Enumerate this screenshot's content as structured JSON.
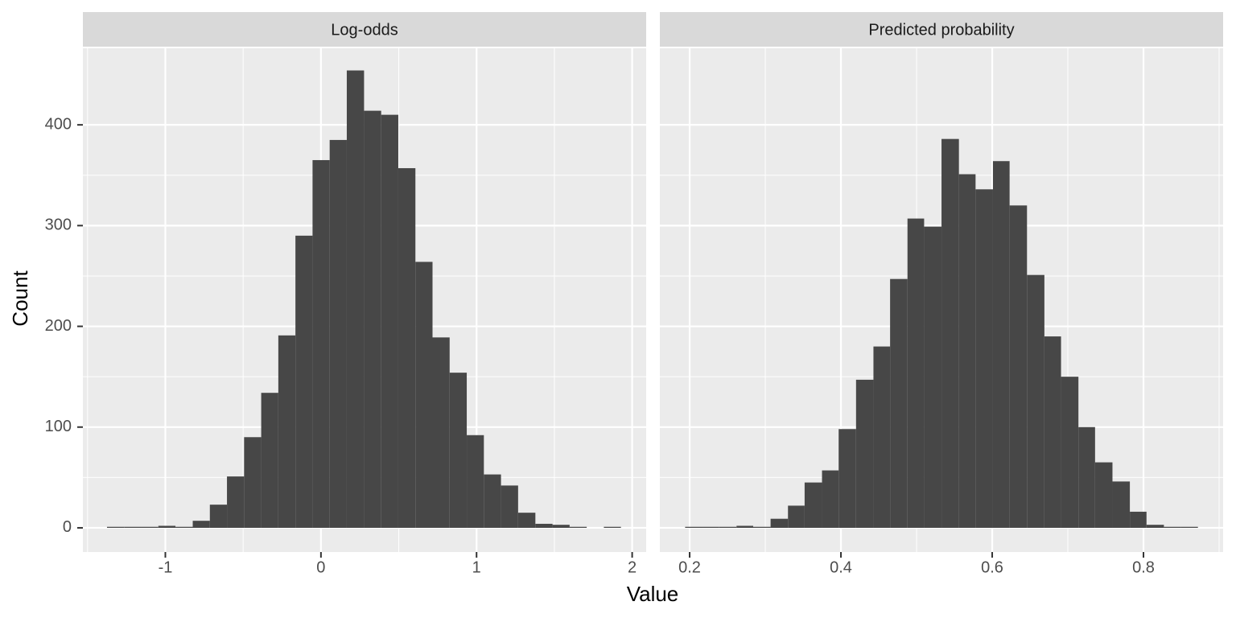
{
  "chart_data": {
    "type": "histogram",
    "xlabel": "Value",
    "ylabel": "Count",
    "color": "#474747",
    "ylim": [
      -24,
      476
    ],
    "yticks": [
      0,
      100,
      200,
      300,
      400
    ],
    "grid": true,
    "facets": [
      {
        "title": "Log-odds",
        "xlim": [
          -1.53,
          2.09
        ],
        "xticks": [
          -1,
          0,
          1,
          2
        ],
        "bins": [
          -1.375,
          -1.265,
          -1.155,
          -1.045,
          -0.935,
          -0.824,
          -0.714,
          -0.604,
          -0.494,
          -0.384,
          -0.274,
          -0.164,
          -0.054,
          0.056,
          0.166,
          0.277,
          0.387,
          0.497,
          0.607,
          0.717,
          0.827,
          0.937,
          1.047,
          1.157,
          1.267,
          1.378,
          1.488,
          1.598,
          1.708,
          1.818,
          1.928
        ],
        "values": [
          1,
          1,
          1,
          2,
          1,
          7,
          23,
          51,
          90,
          134,
          191,
          290,
          365,
          385,
          454,
          414,
          410,
          357,
          264,
          189,
          154,
          92,
          53,
          42,
          15,
          4,
          3,
          1,
          0,
          1
        ]
      },
      {
        "title": "Predicted probability",
        "xlim": [
          0.1606,
          0.9053
        ],
        "xticks": [
          0.2,
          0.4,
          0.6,
          0.8
        ],
        "bins": [
          0.194,
          0.217,
          0.239,
          0.262,
          0.284,
          0.307,
          0.33,
          0.352,
          0.375,
          0.397,
          0.42,
          0.443,
          0.465,
          0.488,
          0.51,
          0.533,
          0.556,
          0.578,
          0.601,
          0.623,
          0.646,
          0.669,
          0.691,
          0.714,
          0.736,
          0.759,
          0.782,
          0.804,
          0.827,
          0.849,
          0.872
        ],
        "values": [
          1,
          1,
          1,
          2,
          1,
          9,
          22,
          45,
          57,
          98,
          147,
          180,
          247,
          307,
          299,
          386,
          351,
          336,
          364,
          320,
          251,
          190,
          150,
          100,
          65,
          46,
          16,
          3,
          1,
          1
        ]
      }
    ]
  }
}
